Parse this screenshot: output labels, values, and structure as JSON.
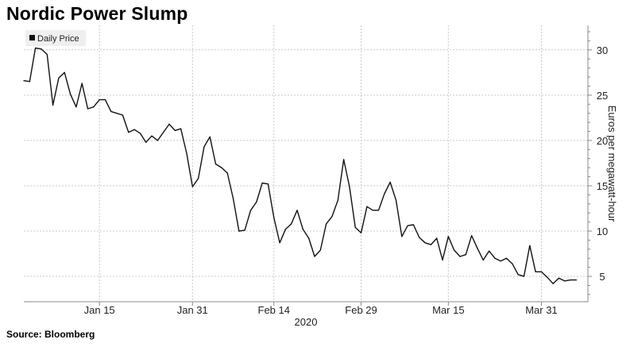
{
  "title": "Nordic Power Slump",
  "source": "Source: Bloomberg",
  "chart_data": {
    "type": "line",
    "ylabel": "Euros per megawatt-hour",
    "xlabel": "2020",
    "ylim": [
      2.2,
      32.7
    ],
    "y_ticks": [
      5,
      10,
      15,
      20,
      25,
      30
    ],
    "y_tick_labels": [
      "5",
      "10",
      "15",
      "20",
      "25",
      "30"
    ],
    "x_tick_labels": [
      "Jan 15",
      "Jan 31",
      "Feb 14",
      "Feb 29",
      "Mar 15",
      "Mar 31"
    ],
    "x_tick_dates": [
      "2020-01-15",
      "2020-01-31",
      "2020-02-14",
      "2020-02-29",
      "2020-03-15",
      "2020-03-31"
    ],
    "x_range": [
      "2020-01-02",
      "2020-04-08"
    ],
    "grid": true,
    "legend_position": "top-left",
    "series": [
      {
        "name": "Daily Price",
        "color": "#111111",
        "x": [
          "2020-01-02",
          "2020-01-03",
          "2020-01-04",
          "2020-01-05",
          "2020-01-06",
          "2020-01-07",
          "2020-01-08",
          "2020-01-09",
          "2020-01-10",
          "2020-01-11",
          "2020-01-12",
          "2020-01-13",
          "2020-01-14",
          "2020-01-15",
          "2020-01-16",
          "2020-01-17",
          "2020-01-18",
          "2020-01-19",
          "2020-01-20",
          "2020-01-21",
          "2020-01-22",
          "2020-01-23",
          "2020-01-24",
          "2020-01-25",
          "2020-01-26",
          "2020-01-27",
          "2020-01-28",
          "2020-01-29",
          "2020-01-30",
          "2020-01-31",
          "2020-02-01",
          "2020-02-02",
          "2020-02-03",
          "2020-02-04",
          "2020-02-05",
          "2020-02-06",
          "2020-02-07",
          "2020-02-08",
          "2020-02-09",
          "2020-02-10",
          "2020-02-11",
          "2020-02-12",
          "2020-02-13",
          "2020-02-14",
          "2020-02-15",
          "2020-02-16",
          "2020-02-17",
          "2020-02-18",
          "2020-02-19",
          "2020-02-20",
          "2020-02-21",
          "2020-02-22",
          "2020-02-23",
          "2020-02-24",
          "2020-02-25",
          "2020-02-26",
          "2020-02-27",
          "2020-02-28",
          "2020-02-29",
          "2020-03-01",
          "2020-03-02",
          "2020-03-03",
          "2020-03-04",
          "2020-03-05",
          "2020-03-06",
          "2020-03-07",
          "2020-03-08",
          "2020-03-09",
          "2020-03-10",
          "2020-03-11",
          "2020-03-12",
          "2020-03-13",
          "2020-03-14",
          "2020-03-15",
          "2020-03-16",
          "2020-03-17",
          "2020-03-18",
          "2020-03-19",
          "2020-03-20",
          "2020-03-21",
          "2020-03-22",
          "2020-03-23",
          "2020-03-24",
          "2020-03-25",
          "2020-03-26",
          "2020-03-27",
          "2020-03-28",
          "2020-03-29",
          "2020-03-30",
          "2020-03-31",
          "2020-04-01",
          "2020-04-02",
          "2020-04-03",
          "2020-04-04",
          "2020-04-05",
          "2020-04-06"
        ],
        "y": [
          26.6,
          26.5,
          30.2,
          30.1,
          29.5,
          23.9,
          26.9,
          27.5,
          25.1,
          23.7,
          26.3,
          23.5,
          23.7,
          24.5,
          24.5,
          23.2,
          23.0,
          22.8,
          20.9,
          21.2,
          20.8,
          19.8,
          20.5,
          20.0,
          20.9,
          21.8,
          21.1,
          21.3,
          18.6,
          14.9,
          15.8,
          19.3,
          20.4,
          17.4,
          17.0,
          16.4,
          13.6,
          10.0,
          10.1,
          12.3,
          13.2,
          15.3,
          15.2,
          11.5,
          8.7,
          10.2,
          10.8,
          12.3,
          10.2,
          9.2,
          7.2,
          7.9,
          10.8,
          11.6,
          13.4,
          17.9,
          14.9,
          10.4,
          9.8,
          12.7,
          12.3,
          12.3,
          14.1,
          15.4,
          13.4,
          9.4,
          10.6,
          10.7,
          9.3,
          8.7,
          8.5,
          9.2,
          6.8,
          9.4,
          7.9,
          7.2,
          7.4,
          9.5,
          8.1,
          6.8,
          7.8,
          7.0,
          6.7,
          7.0,
          6.4,
          5.2,
          5.0,
          8.4,
          5.5,
          5.5,
          4.9,
          4.2,
          4.8,
          4.5,
          4.6,
          4.6
        ]
      }
    ]
  }
}
